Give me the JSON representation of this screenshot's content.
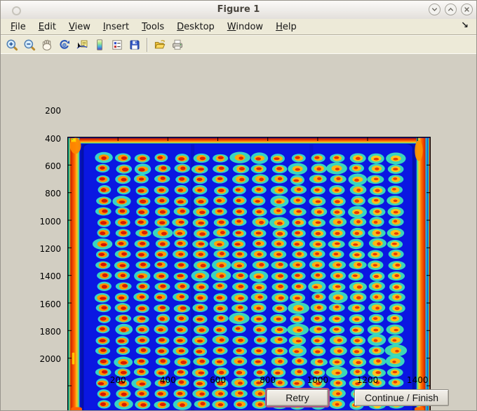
{
  "window": {
    "title": "Figure 1",
    "controls": [
      {
        "name": "minimize"
      },
      {
        "name": "maximize"
      },
      {
        "name": "close"
      }
    ]
  },
  "menubar": {
    "items": [
      "File",
      "Edit",
      "View",
      "Insert",
      "Tools",
      "Desktop",
      "Window",
      "Help"
    ],
    "dock_glyph": "↘"
  },
  "toolbar": {
    "icons": [
      "zoom-in",
      "zoom-out",
      "pan",
      "rotate-3d",
      "data-cursor",
      "colorbar",
      "insert-legend",
      "save",
      "open",
      "print"
    ]
  },
  "buttons": {
    "retry": "Retry",
    "continue": "Continue / Finish"
  },
  "chart_data": {
    "type": "heatmap",
    "title": "",
    "xlabel": "",
    "ylabel": "",
    "x_ticks": [
      200,
      400,
      600,
      800,
      1000,
      1200,
      1400
    ],
    "y_ticks": [
      200,
      400,
      600,
      800,
      1000,
      1200,
      1400,
      1600,
      1800,
      2000
    ],
    "x_range": [
      0,
      1450
    ],
    "y_range": [
      0,
      2100
    ],
    "colormap": "jet",
    "grid_on": false,
    "description": "Jet-colormap intensity image of a scanned 384-spot plate: 16 columns by 24 rows of spots, each with a red core, yellow-orange ring and cyan halo, on a deep blue background; saturated red-orange bands run along all four plate edges with hot orange/yellow blobs in the corners",
    "grid": {
      "cols": 16,
      "rows": 24,
      "x_start": 141,
      "x_step": 78.2,
      "y_start": 149,
      "y_step": 77.7
    },
    "palette": {
      "base": "#0512c4",
      "plate": "#0a17e2",
      "plate_edge": "#0411aa",
      "band": [
        "#8f1600",
        "#e83800",
        "#ff7000",
        "#ffc228",
        "#7adc5a",
        "#22c8dc"
      ],
      "halo_a": "#35dcd0",
      "halo_b": "#40e2b0",
      "ring_left": "#ff9400",
      "ring_right": "#ffc81e",
      "core_left": "#d31300",
      "core_right": "#ee4400",
      "corner": "#ff8800",
      "corner_hot": "#ffd000",
      "maroon": "#7a1000",
      "dark_line": "#0a18c8"
    }
  }
}
